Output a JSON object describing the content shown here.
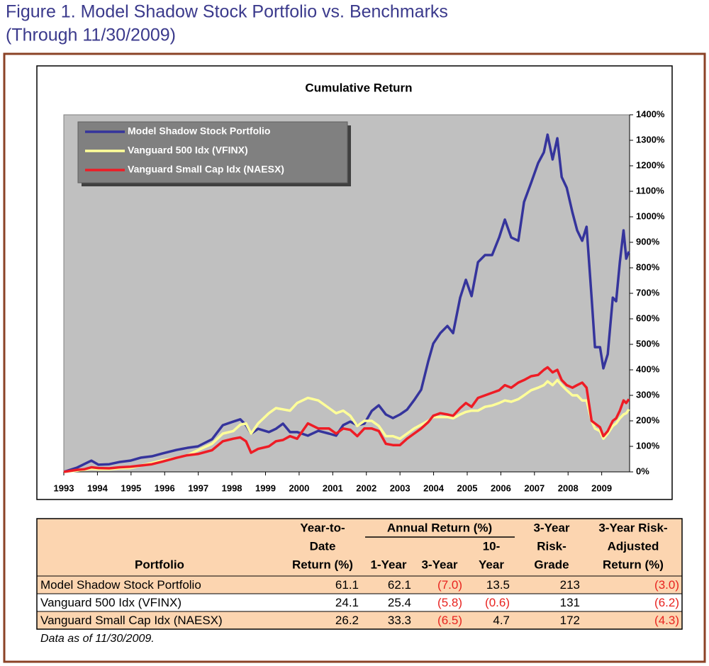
{
  "figure_title": [
    "Figure 1. Model Shadow Stock Portfolio vs. Benchmarks",
    "(Through 11/30/2009)"
  ],
  "chart_data": {
    "type": "line",
    "title": "Cumulative Return",
    "x": [
      1993.0,
      1993.4,
      1993.6,
      1993.82,
      1994.03,
      1994.35,
      1994.67,
      1994.98,
      1995.3,
      1995.62,
      1995.93,
      1996.35,
      1996.67,
      1996.99,
      1997.41,
      1997.73,
      1998.04,
      1998.25,
      1998.42,
      1998.57,
      1998.78,
      1999.1,
      1999.31,
      1999.52,
      1999.73,
      1999.94,
      2000.26,
      2000.57,
      2000.89,
      2001.1,
      2001.31,
      2001.52,
      2001.73,
      2001.94,
      2002.16,
      2002.37,
      2002.58,
      2002.79,
      2003.0,
      2003.21,
      2003.42,
      2003.63,
      2003.84,
      2003.99,
      2004.2,
      2004.41,
      2004.58,
      2004.79,
      2004.96,
      2005.13,
      2005.32,
      2005.53,
      2005.74,
      2005.95,
      2006.12,
      2006.31,
      2006.52,
      2006.69,
      2006.9,
      2007.11,
      2007.28,
      2007.39,
      2007.54,
      2007.68,
      2007.81,
      2007.96,
      2008.13,
      2008.27,
      2008.42,
      2008.55,
      2008.7,
      2008.8,
      2008.95,
      2009.05,
      2009.18,
      2009.33,
      2009.43,
      2009.54,
      2009.65,
      2009.73,
      2009.81
    ],
    "series": [
      {
        "name": "Model Shadow Stock Portfolio",
        "color": "#35349c",
        "values": [
          0,
          17,
          30,
          44,
          28,
          30,
          39,
          44,
          56,
          61,
          72,
          86,
          94,
          100,
          128,
          183,
          197,
          206,
          183,
          150,
          169,
          156,
          169,
          189,
          156,
          156,
          142,
          161,
          150,
          142,
          183,
          197,
          183,
          189,
          239,
          261,
          225,
          211,
          225,
          244,
          281,
          322,
          433,
          503,
          544,
          572,
          544,
          683,
          753,
          689,
          822,
          850,
          850,
          919,
          989,
          919,
          906,
          1058,
          1133,
          1211,
          1253,
          1322,
          1225,
          1308,
          1156,
          1114,
          1017,
          947,
          906,
          961,
          683,
          489,
          489,
          406,
          461,
          683,
          669,
          822,
          947,
          836,
          864
        ]
      },
      {
        "name": "Vanguard 500 Idx (VFINX)",
        "color": "#ffff99",
        "values": [
          0,
          5,
          8,
          12,
          10,
          10,
          14,
          15,
          25,
          35,
          45,
          55,
          65,
          85,
          110,
          150,
          160,
          185,
          190,
          150,
          190,
          230,
          250,
          245,
          240,
          270,
          290,
          280,
          250,
          230,
          240,
          220,
          180,
          200,
          200,
          180,
          140,
          140,
          130,
          150,
          170,
          185,
          200,
          215,
          215,
          215,
          210,
          225,
          235,
          240,
          240,
          255,
          260,
          270,
          280,
          275,
          285,
          300,
          320,
          330,
          340,
          355,
          340,
          360,
          340,
          320,
          300,
          300,
          280,
          280,
          200,
          170,
          160,
          130,
          150,
          180,
          190,
          210,
          225,
          230,
          245
        ]
      },
      {
        "name": "Vanguard Small Cap Idx (NAESX)",
        "color": "#ee1c25",
        "values": [
          0,
          8,
          10,
          18,
          15,
          14,
          18,
          20,
          25,
          30,
          40,
          55,
          65,
          70,
          85,
          120,
          130,
          135,
          120,
          75,
          90,
          100,
          120,
          125,
          140,
          130,
          190,
          170,
          170,
          150,
          170,
          165,
          140,
          170,
          170,
          160,
          110,
          105,
          105,
          130,
          150,
          170,
          195,
          220,
          230,
          225,
          220,
          250,
          270,
          255,
          290,
          300,
          310,
          320,
          340,
          330,
          350,
          360,
          375,
          380,
          400,
          410,
          390,
          400,
          360,
          340,
          330,
          340,
          350,
          330,
          200,
          190,
          175,
          140,
          160,
          200,
          210,
          240,
          280,
          270,
          285
        ]
      }
    ],
    "xlim": [
      1993,
      2009.83
    ],
    "xticks": [
      1993,
      1994,
      1995,
      1996,
      1997,
      1998,
      1999,
      2000,
      2001,
      2002,
      2003,
      2004,
      2005,
      2006,
      2007,
      2008,
      2009
    ],
    "ylim": [
      0,
      1400
    ],
    "yticks": [
      {
        "value": 0,
        "label": "0%"
      },
      {
        "value": 100,
        "label": "100%"
      },
      {
        "value": 200,
        "label": "200%"
      },
      {
        "value": 300,
        "label": "300%"
      },
      {
        "value": 400,
        "label": "400%"
      },
      {
        "value": 500,
        "label": "500%"
      },
      {
        "value": 600,
        "label": "600%"
      },
      {
        "value": 700,
        "label": "700%"
      },
      {
        "value": 800,
        "label": "800%"
      },
      {
        "value": 900,
        "label": "900%"
      },
      {
        "value": 1000,
        "label": "1000%"
      },
      {
        "value": 1100,
        "label": "1100%"
      },
      {
        "value": 1200,
        "label": "1200%"
      },
      {
        "value": 1300,
        "label": "1300%"
      },
      {
        "value": 1400,
        "label": "1400%"
      }
    ],
    "y_axis_side": "right",
    "grid": false,
    "legend": "upper left",
    "plot_color": "#c0c0c0"
  },
  "table": {
    "header": {
      "portfolio": "Portfolio",
      "ytd": [
        "Year-to-",
        "Date",
        "Return (%)"
      ],
      "annual": "Annual Return (%)",
      "one_year": "1-Year",
      "three_year": "3-Year",
      "ten_year": [
        "10-",
        "Year"
      ],
      "risk_grade": [
        "3-Year",
        "Risk-",
        "Grade"
      ],
      "risk_adjusted": [
        "3-Year Risk-",
        "Adjusted",
        "Return (%)"
      ]
    },
    "rows": [
      [
        "Model Shadow Stock Portfolio",
        "61.1",
        "62.1",
        "(7.0)",
        "13.5",
        "213",
        "(3.0)"
      ],
      [
        "Vanguard 500 Idx (VFINX)",
        "24.1",
        "25.4",
        "(5.8)",
        "(0.6)",
        "131",
        "(6.2)"
      ],
      [
        "Vanguard Small Cap Idx (NAESX)",
        "26.2",
        "33.3",
        "(6.5)",
        "4.7",
        "172",
        "(4.3)"
      ]
    ],
    "note": "Data as of 11/30/2009."
  }
}
